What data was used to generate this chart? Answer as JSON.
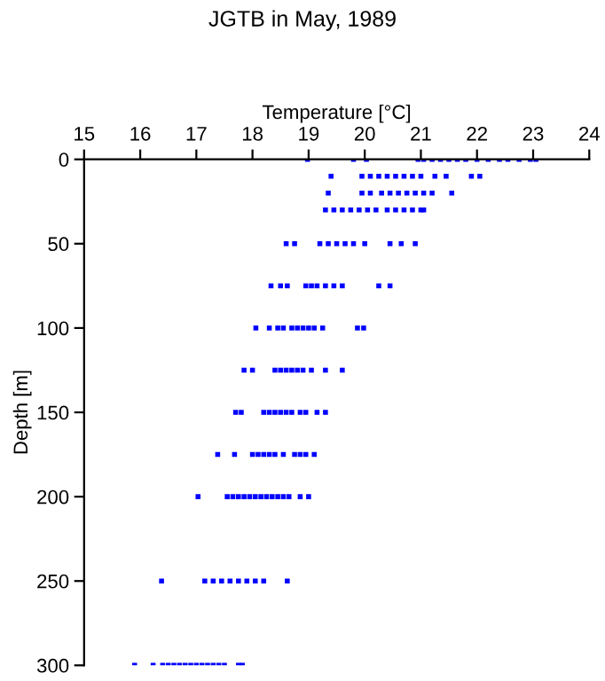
{
  "chart_data": {
    "type": "scatter",
    "title": "JGTB in May, 1989",
    "xlabel": "Temperature [°C]",
    "ylabel": "Depth [m]",
    "xlim": [
      15,
      24
    ],
    "xticks": [
      15,
      16,
      17,
      18,
      19,
      20,
      21,
      22,
      23,
      24
    ],
    "ylim": [
      300,
      0
    ],
    "yticks": [
      0,
      50,
      100,
      150,
      200,
      250,
      300
    ],
    "marker": "square",
    "series": [
      {
        "color": "#0000ff",
        "x": [
          18.98,
          19.8,
          20.03,
          20.95,
          21.05,
          21.2,
          21.35,
          21.5,
          21.65,
          21.8,
          22.0,
          22.2,
          22.4,
          22.55,
          22.75,
          22.95,
          23.05,
          19.4,
          19.95,
          20.1,
          20.25,
          20.4,
          20.55,
          20.7,
          20.85,
          21.0,
          21.25,
          21.45,
          21.9,
          22.05,
          19.35,
          19.95,
          20.1,
          20.3,
          20.45,
          20.6,
          20.75,
          20.9,
          21.05,
          21.2,
          21.55,
          19.3,
          19.45,
          19.6,
          19.75,
          19.9,
          20.05,
          20.2,
          20.4,
          20.55,
          20.7,
          20.85,
          21.0,
          21.05,
          18.6,
          18.75,
          19.2,
          19.35,
          19.5,
          19.65,
          19.8,
          20.0,
          20.45,
          20.65,
          20.9,
          18.33,
          18.5,
          18.62,
          18.95,
          19.05,
          19.15,
          19.3,
          19.45,
          19.6,
          20.25,
          20.45,
          18.06,
          18.3,
          18.45,
          18.55,
          18.7,
          18.8,
          18.9,
          19.0,
          19.1,
          19.25,
          19.87,
          19.98,
          17.85,
          18.0,
          18.4,
          18.5,
          18.6,
          18.7,
          18.8,
          18.9,
          19.05,
          19.3,
          19.6,
          17.7,
          17.8,
          18.2,
          18.3,
          18.4,
          18.5,
          18.6,
          18.7,
          18.85,
          18.95,
          19.15,
          19.3,
          17.38,
          17.68,
          18.0,
          18.1,
          18.2,
          18.3,
          18.4,
          18.55,
          18.75,
          18.85,
          18.95,
          19.1,
          17.03,
          17.55,
          17.65,
          17.75,
          17.85,
          17.95,
          18.05,
          18.15,
          18.25,
          18.35,
          18.45,
          18.55,
          18.65,
          18.85,
          19.0,
          16.38,
          17.15,
          17.3,
          17.45,
          17.6,
          17.75,
          17.9,
          18.05,
          18.2,
          18.62,
          15.9,
          16.23,
          16.4,
          16.5,
          16.6,
          16.7,
          16.8,
          16.9,
          17.0,
          17.1,
          17.2,
          17.3,
          17.4,
          17.5,
          17.75,
          17.82
        ],
        "values": [
          0,
          0,
          0,
          0,
          0,
          0,
          0,
          0,
          0,
          0,
          0,
          0,
          0,
          0,
          0,
          0,
          0,
          10,
          10,
          10,
          10,
          10,
          10,
          10,
          10,
          10,
          10,
          10,
          10,
          10,
          20,
          20,
          20,
          20,
          20,
          20,
          20,
          20,
          20,
          20,
          20,
          30,
          30,
          30,
          30,
          30,
          30,
          30,
          30,
          30,
          30,
          30,
          30,
          30,
          50,
          50,
          50,
          50,
          50,
          50,
          50,
          50,
          50,
          50,
          50,
          75,
          75,
          75,
          75,
          75,
          75,
          75,
          75,
          75,
          75,
          75,
          100,
          100,
          100,
          100,
          100,
          100,
          100,
          100,
          100,
          100,
          100,
          100,
          125,
          125,
          125,
          125,
          125,
          125,
          125,
          125,
          125,
          125,
          125,
          150,
          150,
          150,
          150,
          150,
          150,
          150,
          150,
          150,
          150,
          150,
          150,
          175,
          175,
          175,
          175,
          175,
          175,
          175,
          175,
          175,
          175,
          175,
          175,
          200,
          200,
          200,
          200,
          200,
          200,
          200,
          200,
          200,
          200,
          200,
          200,
          200,
          200,
          200,
          250,
          250,
          250,
          250,
          250,
          250,
          250,
          250,
          250,
          250,
          300,
          300,
          300,
          300,
          300,
          300,
          300,
          300,
          300,
          300,
          300,
          300,
          300,
          300,
          300,
          300
        ]
      }
    ]
  }
}
